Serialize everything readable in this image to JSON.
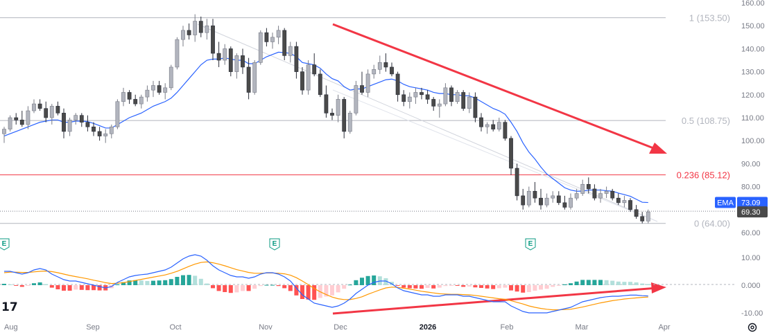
{
  "chart_data": {
    "type": "candlestick",
    "price_axis": {
      "range": [
        58,
        163
      ],
      "ticks": [
        "160.00",
        "150.00",
        "140.00",
        "130.00",
        "120.00",
        "110.00",
        "100.00",
        "90.00",
        "80.00",
        "70.00",
        "60.00"
      ]
    },
    "macd_axis": {
      "range": [
        -12,
        13
      ],
      "ticks": [
        "10.00",
        "0.000",
        "-10.00"
      ]
    },
    "x_axis": {
      "labels": [
        "Aug",
        "Sep",
        "Oct",
        "Nov",
        "Dec",
        "2026",
        "Feb",
        "Mar",
        "Apr"
      ],
      "bold_label": "2026"
    },
    "candles": [
      [
        103,
        106,
        99,
        105
      ],
      [
        105,
        111,
        104,
        110
      ],
      [
        110,
        112,
        107,
        109
      ],
      [
        109,
        113,
        106,
        107
      ],
      [
        107,
        115,
        105,
        113
      ],
      [
        113,
        118,
        112,
        116
      ],
      [
        116,
        118,
        113,
        114
      ],
      [
        114,
        117,
        108,
        110
      ],
      [
        110,
        116,
        107,
        115
      ],
      [
        115,
        117,
        111,
        112
      ],
      [
        112,
        114,
        101,
        104
      ],
      [
        104,
        110,
        102,
        109
      ],
      [
        109,
        112,
        107,
        111
      ],
      [
        111,
        112,
        106,
        108
      ],
      [
        108,
        111,
        104,
        106
      ],
      [
        106,
        108,
        102,
        104
      ],
      [
        104,
        106,
        100,
        102
      ],
      [
        102,
        105,
        99,
        103
      ],
      [
        103,
        107,
        101,
        106
      ],
      [
        106,
        118,
        105,
        117
      ],
      [
        117,
        123,
        115,
        121
      ],
      [
        121,
        122,
        116,
        118
      ],
      [
        118,
        120,
        115,
        116
      ],
      [
        116,
        120,
        114,
        119
      ],
      [
        119,
        124,
        117,
        122
      ],
      [
        122,
        126,
        119,
        124
      ],
      [
        124,
        126,
        120,
        121
      ],
      [
        121,
        125,
        118,
        123
      ],
      [
        123,
        133,
        122,
        132
      ],
      [
        132,
        145,
        131,
        144
      ],
      [
        144,
        150,
        141,
        148
      ],
      [
        148,
        151,
        144,
        146
      ],
      [
        146,
        155,
        143,
        152
      ],
      [
        152,
        154,
        145,
        147
      ],
      [
        147,
        153,
        144,
        150
      ],
      [
        150,
        153,
        135,
        138
      ],
      [
        138,
        143,
        132,
        135
      ],
      [
        135,
        142,
        133,
        140
      ],
      [
        140,
        141,
        128,
        130
      ],
      [
        130,
        138,
        127,
        137
      ],
      [
        137,
        140,
        129,
        132
      ],
      [
        132,
        136,
        118,
        121
      ],
      [
        121,
        135,
        120,
        134
      ],
      [
        134,
        148,
        133,
        147
      ],
      [
        147,
        149,
        141,
        143
      ],
      [
        143,
        147,
        140,
        145
      ],
      [
        145,
        150,
        142,
        148
      ],
      [
        148,
        149,
        135,
        137
      ],
      [
        137,
        143,
        134,
        141
      ],
      [
        141,
        143,
        127,
        130
      ],
      [
        130,
        132,
        120,
        122
      ],
      [
        122,
        135,
        120,
        133
      ],
      [
        133,
        138,
        128,
        129
      ],
      [
        129,
        131,
        119,
        120
      ],
      [
        120,
        124,
        110,
        112
      ],
      [
        112,
        114,
        109,
        111
      ],
      [
        111,
        120,
        108,
        118
      ],
      [
        118,
        119,
        101,
        104
      ],
      [
        104,
        113,
        103,
        112
      ],
      [
        112,
        126,
        111,
        124
      ],
      [
        124,
        130,
        120,
        121
      ],
      [
        121,
        131,
        119,
        129
      ],
      [
        129,
        133,
        127,
        131
      ],
      [
        131,
        137,
        129,
        134
      ],
      [
        134,
        138,
        130,
        132
      ],
      [
        132,
        134,
        128,
        129
      ],
      [
        129,
        130,
        117,
        120
      ],
      [
        120,
        122,
        115,
        117
      ],
      [
        117,
        121,
        114,
        119
      ],
      [
        119,
        123,
        116,
        121
      ],
      [
        121,
        123,
        118,
        120
      ],
      [
        120,
        122,
        116,
        118
      ],
      [
        118,
        119,
        113,
        115
      ],
      [
        115,
        118,
        110,
        116
      ],
      [
        116,
        125,
        115,
        123
      ],
      [
        123,
        124,
        115,
        117
      ],
      [
        117,
        122,
        116,
        121
      ],
      [
        121,
        122,
        113,
        114
      ],
      [
        114,
        121,
        112,
        119
      ],
      [
        119,
        121,
        108,
        110
      ],
      [
        110,
        112,
        104,
        106
      ],
      [
        106,
        108,
        103,
        107
      ],
      [
        107,
        109,
        104,
        105
      ],
      [
        105,
        110,
        104,
        108
      ],
      [
        108,
        109,
        100,
        101
      ],
      [
        101,
        102,
        85,
        88
      ],
      [
        88,
        90,
        74,
        76
      ],
      [
        76,
        79,
        70,
        72
      ],
      [
        72,
        80,
        71,
        78
      ],
      [
        78,
        82,
        73,
        75
      ],
      [
        75,
        79,
        70,
        72
      ],
      [
        72,
        77,
        71,
        75
      ],
      [
        75,
        78,
        73,
        76
      ],
      [
        76,
        78,
        72,
        73
      ],
      [
        73,
        76,
        70,
        71
      ],
      [
        71,
        77,
        70,
        75
      ],
      [
        75,
        79,
        74,
        77
      ],
      [
        77,
        83,
        76,
        81
      ],
      [
        81,
        84,
        77,
        79
      ],
      [
        79,
        81,
        74,
        75
      ],
      [
        75,
        79,
        73,
        77
      ],
      [
        77,
        80,
        75,
        78
      ],
      [
        78,
        79,
        74,
        75
      ],
      [
        75,
        77,
        72,
        73
      ],
      [
        73,
        76,
        71,
        74
      ],
      [
        74,
        75,
        69,
        70
      ],
      [
        70,
        72,
        66,
        67
      ],
      [
        67,
        69,
        64,
        65
      ],
      [
        65,
        70,
        64,
        69
      ]
    ],
    "ema": {
      "label": "EMA",
      "value": "73.09",
      "color": "#2962ff",
      "values": [
        102,
        103,
        104,
        105,
        106,
        107,
        108,
        108.5,
        109,
        109,
        108,
        108,
        108.5,
        108.5,
        108.3,
        107.5,
        106.5,
        105.5,
        105.5,
        107,
        108.5,
        110,
        111,
        112,
        113.5,
        115,
        116,
        117,
        118.5,
        121,
        124,
        127,
        130,
        133,
        135,
        135.5,
        135.5,
        136,
        135.5,
        135,
        135,
        133.5,
        133.5,
        135,
        136.5,
        137.5,
        138.5,
        138.3,
        138,
        136.5,
        134,
        133.5,
        133,
        131.5,
        129,
        127,
        126,
        123.5,
        122,
        122.5,
        122.5,
        123.5,
        124.5,
        125.5,
        126.5,
        126.8,
        126,
        124.5,
        123.5,
        123,
        122.5,
        122,
        121,
        120.5,
        120.5,
        120,
        120,
        119.5,
        119.5,
        118.5,
        117,
        115.5,
        114,
        113,
        111.5,
        108,
        104,
        99,
        95,
        92,
        88.5,
        85.5,
        83.5,
        81.5,
        79.5,
        78.5,
        78,
        78,
        78.5,
        78.5,
        78.5,
        78.2,
        78,
        77.2,
        76.5,
        75.8,
        74.5,
        73.2,
        73.09
      ]
    },
    "last_price": {
      "value": "69.30"
    },
    "fib_levels": [
      {
        "label": "1 (153.50)",
        "price": 153.5,
        "color": "#b2b5be"
      },
      {
        "label": "0.5 (108.75)",
        "price": 108.75,
        "color": "#b2b5be"
      },
      {
        "label": "0.236 (85.12)",
        "price": 85.12,
        "color": "#f23645"
      },
      {
        "label": "0 (64.00)",
        "price": 64.0,
        "color": "#b2b5be"
      }
    ],
    "earnings_marker": "E",
    "macd": {
      "macd_values": [
        5,
        5,
        4.5,
        4,
        4.5,
        5.5,
        6,
        5.5,
        4,
        3,
        2,
        1.5,
        1.5,
        1,
        0.5,
        0,
        -0.5,
        -1,
        -0.5,
        1,
        2,
        3,
        3.5,
        3.8,
        4,
        4.5,
        5,
        5.5,
        6.5,
        8,
        9.5,
        10.5,
        11,
        10.5,
        9,
        7,
        5.5,
        4.5,
        3.5,
        3,
        3,
        2.5,
        3,
        4,
        4.5,
        4.5,
        4,
        3,
        1.5,
        -1,
        -3.5,
        -5,
        -6.5,
        -7,
        -7.5,
        -8,
        -7.5,
        -6.5,
        -5,
        -3,
        -1.5,
        0,
        1,
        1.5,
        1.5,
        0.5,
        -1,
        -2,
        -2.5,
        -3,
        -3.5,
        -3.5,
        -4,
        -4,
        -3.5,
        -3.5,
        -3.5,
        -4,
        -4,
        -4.5,
        -5,
        -5.5,
        -6,
        -6,
        -6,
        -7.5,
        -8.5,
        -9.5,
        -10,
        -10,
        -10,
        -10,
        -9.5,
        -9,
        -8.5,
        -8,
        -7,
        -6,
        -5.5,
        -5,
        -4.5,
        -4.2,
        -4,
        -4,
        -3.8,
        -3.6,
        -3.6,
        -3.8,
        -3.9
      ],
      "signal_values": [
        4.5,
        4.7,
        4.7,
        4.6,
        4.6,
        4.8,
        5,
        5.1,
        4.9,
        4.5,
        4,
        3.5,
        3.1,
        2.7,
        2.3,
        1.8,
        1.4,
        0.9,
        0.6,
        0.7,
        0.9,
        1.3,
        1.7,
        2.1,
        2.5,
        2.9,
        3.3,
        3.7,
        4.3,
        5,
        5.9,
        6.8,
        7.6,
        8.2,
        8.4,
        8.1,
        7.6,
        7,
        6.3,
        5.6,
        5.1,
        4.6,
        4.3,
        4.3,
        4.4,
        4.4,
        4.3,
        4.1,
        3.6,
        2.7,
        1.5,
        0.2,
        -1.2,
        -2.4,
        -3.4,
        -4.3,
        -4.9,
        -5.2,
        -5.2,
        -4.8,
        -4.2,
        -3.3,
        -2.5,
        -1.7,
        -1,
        -0.7,
        -0.8,
        -1.1,
        -1.4,
        -1.8,
        -2.2,
        -2.5,
        -2.8,
        -3.1,
        -3.2,
        -3.3,
        -3.3,
        -3.4,
        -3.5,
        -3.7,
        -4,
        -4.3,
        -4.6,
        -4.9,
        -5.1,
        -5.6,
        -6.2,
        -6.8,
        -7.5,
        -8,
        -8.4,
        -8.7,
        -8.9,
        -8.9,
        -8.8,
        -8.7,
        -8.3,
        -7.9,
        -7.4,
        -6.9,
        -6.4,
        -6,
        -5.6,
        -5.3,
        -5,
        -4.8,
        -4.6,
        -4.4,
        -4.3
      ],
      "macd_color": "#2962ff",
      "signal_color": "#ff9800"
    }
  }
}
